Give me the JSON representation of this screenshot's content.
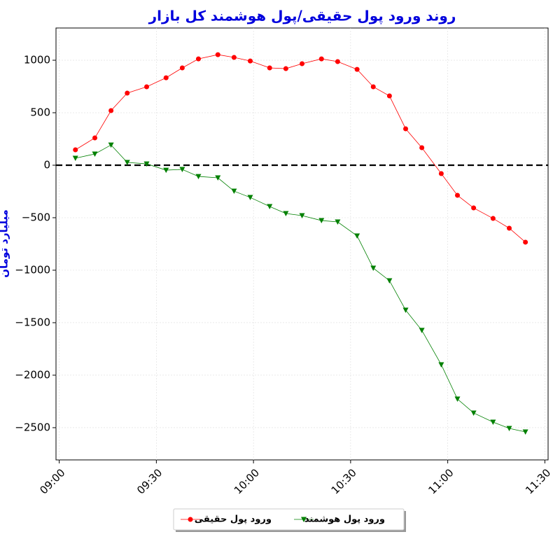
{
  "chart_data": {
    "type": "line",
    "title": "روند ورود پول حقیقی/پول هوشمند کل بازار",
    "y_label": "میلیارد تومان",
    "x": [
      "09:05",
      "09:11",
      "09:16",
      "09:21",
      "09:27",
      "09:33",
      "09:38",
      "09:43",
      "09:49",
      "09:54",
      "09:59",
      "10:05",
      "10:10",
      "10:15",
      "10:21",
      "10:26",
      "10:32",
      "10:37",
      "10:42",
      "10:47",
      "10:52",
      "10:58",
      "11:03",
      "11:08",
      "11:14",
      "11:19",
      "11:24"
    ],
    "series": [
      {
        "name": "ورود پول حقیقی",
        "color": "#ff0000",
        "marker": "circle",
        "values": [
          147,
          260,
          520,
          687,
          747,
          833,
          927,
          1013,
          1053,
          1027,
          993,
          927,
          920,
          967,
          1013,
          987,
          913,
          747,
          660,
          347,
          167,
          -80,
          -287,
          -407,
          -507,
          -600,
          -733
        ]
      },
      {
        "name": "ورود پول هوشمند",
        "color": "#008000",
        "marker": "triangle-down",
        "values": [
          67,
          107,
          193,
          27,
          13,
          -47,
          -40,
          -107,
          -120,
          -247,
          -307,
          -393,
          -460,
          -480,
          -527,
          -540,
          -673,
          -980,
          -1100,
          -1380,
          -1573,
          -1900,
          -2227,
          -2360,
          -2447,
          -2507,
          -2540
        ]
      }
    ],
    "xlim": [
      "08:59",
      "11:31"
    ],
    "xticks": [
      "09:00",
      "09:30",
      "10:00",
      "10:30",
      "11:00",
      "11:30"
    ],
    "ylim": [
      -2807,
      1307
    ],
    "yticks": [
      {
        "value": -2500,
        "label": "−2500"
      },
      {
        "value": -2000,
        "label": "−2000"
      },
      {
        "value": -1500,
        "label": "−1500"
      },
      {
        "value": -1000,
        "label": "−1000"
      },
      {
        "value": -500,
        "label": "−500"
      },
      0,
      500,
      1000
    ],
    "hline": 0,
    "grid": true,
    "legend": "bottom"
  }
}
